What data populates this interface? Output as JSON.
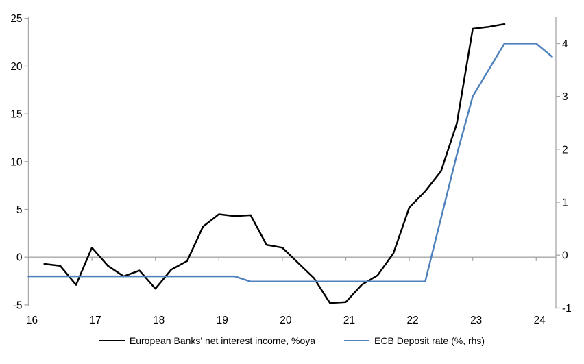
{
  "chart_data": {
    "type": "line",
    "title": "",
    "x_axis": {
      "tick_labels": [
        "16",
        "17",
        "18",
        "19",
        "20",
        "21",
        "22",
        "23",
        "24"
      ],
      "tick_values": [
        16,
        17,
        18,
        19,
        20,
        21,
        22,
        23,
        24
      ],
      "range": [
        16,
        24.31
      ],
      "grid": false
    },
    "left_axis": {
      "tick_labels": [
        "-5",
        "0",
        "5",
        "10",
        "15",
        "20",
        "25"
      ],
      "tick_values": [
        -5,
        0,
        5,
        10,
        15,
        20,
        25
      ],
      "range": [
        -5,
        25.2
      ],
      "grid": false
    },
    "right_axis": {
      "tick_labels": [
        "-1",
        "0",
        "1",
        "2",
        "3",
        "4"
      ],
      "tick_values": [
        -1,
        0,
        1,
        2,
        3,
        4
      ],
      "range": [
        -1.05,
        4.5
      ],
      "grid": false
    },
    "zero_line_shown": true,
    "series": [
      {
        "name": "European Banks' net interest income, %oya",
        "axis": "left",
        "color": "#000000",
        "x": [
          16.25,
          16.5,
          16.75,
          17.0,
          17.25,
          17.5,
          17.75,
          18.0,
          18.25,
          18.5,
          18.75,
          19.0,
          19.25,
          19.5,
          19.75,
          20.0,
          20.25,
          20.5,
          20.75,
          21.0,
          21.25,
          21.5,
          21.75,
          22.0,
          22.25,
          22.5,
          22.75,
          23.0,
          23.25,
          23.5
        ],
        "values": [
          -0.7,
          -0.9,
          -2.9,
          1.0,
          -0.9,
          -2.0,
          -1.4,
          -3.3,
          -1.3,
          -0.4,
          3.2,
          4.5,
          4.3,
          4.4,
          1.3,
          1.0,
          -0.6,
          -2.2,
          -4.8,
          -4.7,
          -2.9,
          -1.9,
          0.4,
          5.2,
          6.9,
          9.0,
          14.0,
          23.9,
          24.1,
          24.4
        ]
      },
      {
        "name": "ECB Deposit rate (%, rhs)",
        "axis": "right",
        "color": "#4f81bd",
        "x": [
          16.0,
          16.25,
          16.5,
          16.75,
          17.0,
          17.25,
          17.5,
          17.75,
          18.0,
          18.25,
          18.5,
          18.75,
          19.0,
          19.25,
          19.5,
          19.75,
          20.0,
          20.25,
          20.5,
          20.75,
          21.0,
          21.25,
          21.5,
          21.75,
          22.0,
          22.25,
          22.5,
          22.75,
          23.0,
          23.25,
          23.5,
          23.75,
          24.0,
          24.25
        ],
        "values": [
          -0.4,
          -0.4,
          -0.4,
          -0.4,
          -0.4,
          -0.4,
          -0.4,
          -0.4,
          -0.4,
          -0.4,
          -0.4,
          -0.4,
          -0.4,
          -0.4,
          -0.5,
          -0.5,
          -0.5,
          -0.5,
          -0.5,
          -0.5,
          -0.5,
          -0.5,
          -0.5,
          -0.5,
          -0.5,
          -0.5,
          0.7,
          1.9,
          3.0,
          3.5,
          4.0,
          4.0,
          4.0,
          3.75
        ]
      }
    ],
    "legend": {
      "position": "bottom"
    },
    "colors": {
      "axis": "#a6a6a6",
      "text": "#000000"
    }
  }
}
